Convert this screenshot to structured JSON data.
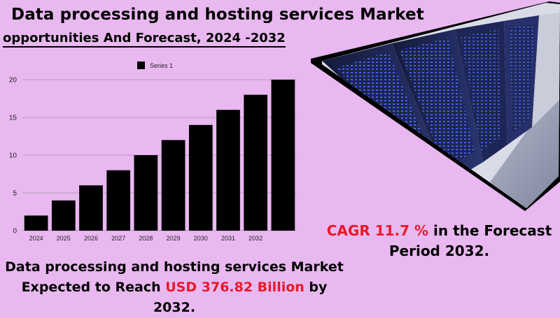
{
  "header": {
    "title": "Data processing and hosting services Market",
    "subtitle": "opportunities And Forecast, 2024 -2032"
  },
  "cagr": {
    "label": "CAGR",
    "value": "11.7 %",
    "rest_line1": "in the  Forecast",
    "line2": "Period  2032."
  },
  "footer": {
    "line1": "Data processing and hosting services Market",
    "prefix": "Expected to Reach",
    "highlight": "USD 376.82  Billion",
    "suffix": "by 2032."
  },
  "colors": {
    "background": "#e9b8f0",
    "bar": "#000000",
    "accent_red": "#e8182b"
  },
  "chart_data": {
    "type": "bar",
    "title": "",
    "xlabel": "",
    "ylabel": "",
    "categories": [
      "2024",
      "2025",
      "2026",
      "2027",
      "2028",
      "2029",
      "2030",
      "2031",
      "2032",
      ""
    ],
    "series": [
      {
        "name": "Series 1",
        "values": [
          2,
          4,
          6,
          8,
          10,
          12,
          14,
          16,
          18,
          20
        ]
      }
    ],
    "ylim": [
      0,
      20
    ],
    "yticks": [
      0,
      5,
      10,
      15,
      20
    ],
    "grid": true,
    "legend": "top-center"
  }
}
